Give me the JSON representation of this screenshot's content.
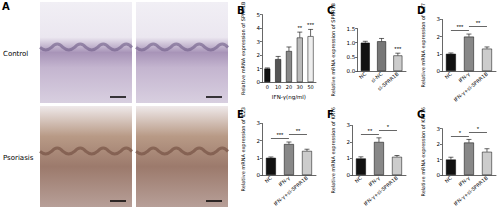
{
  "panel_a": {
    "title": "A",
    "rows": [
      {
        "label": "Control"
      },
      {
        "label": "Psoriasis"
      }
    ]
  },
  "chart_data": [
    {
      "type": "bar",
      "title": "B",
      "x_label": "IFN-γ(ng/ml)",
      "y_label": "Relative mRNA expression of SPRR1B",
      "categories": [
        "0",
        "10",
        "20",
        "30",
        "50"
      ],
      "values": [
        1.0,
        1.7,
        2.3,
        3.3,
        3.4
      ],
      "errors": [
        0.05,
        0.2,
        0.3,
        0.4,
        0.5
      ],
      "colors": [
        "#111111",
        "#555555",
        "#888888",
        "#bbbbbb",
        "#eeeeee"
      ],
      "ylim": [
        0,
        5
      ],
      "yticks": [
        0,
        1,
        2,
        3,
        4,
        5
      ],
      "annotations": [
        {
          "text": "**",
          "at": "30"
        },
        {
          "text": "***",
          "at": "50"
        }
      ]
    },
    {
      "type": "bar",
      "title": "C",
      "y_label": "Relative mRNA expression of SPRR1B",
      "categories": [
        "NC",
        "si-NC",
        "si-SPRR1B"
      ],
      "values": [
        1.0,
        1.05,
        0.55
      ],
      "errors": [
        0.05,
        0.1,
        0.08
      ],
      "colors": [
        "#111111",
        "#777777",
        "#cccccc"
      ],
      "ylim": [
        0,
        1.5
      ],
      "yticks": [
        {
          "value": 0,
          "label": "0.0"
        },
        {
          "value": 0.5,
          "label": "0.5"
        },
        {
          "value": 1,
          "label": "1.0"
        },
        {
          "value": 1.5,
          "label": "1.5"
        }
      ],
      "annotations": [
        {
          "text": "***",
          "at": "si-SPRR1B"
        }
      ]
    },
    {
      "type": "bar",
      "title": "D",
      "y_label": "Relative mRNA expression of IL17",
      "categories": [
        "NC",
        "IFN-γ",
        "IFN-γ+si-SPRR1B"
      ],
      "values": [
        1.0,
        2.0,
        1.3
      ],
      "errors": [
        0.05,
        0.15,
        0.1
      ],
      "colors": [
        "#111111",
        "#888888",
        "#cccccc"
      ],
      "ylim": [
        0,
        3
      ],
      "yticks": [
        0,
        1,
        2,
        3
      ],
      "annotations": [
        {
          "text": "***",
          "from": "NC",
          "to": "IFN-γ"
        },
        {
          "text": "**",
          "from": "IFN-γ",
          "to": "IFN-γ+si-SPRR1B"
        }
      ]
    },
    {
      "type": "bar",
      "title": "E",
      "y_label": "Relative mRNA expression of IL23",
      "categories": [
        "NC",
        "IFN-γ",
        "IFN-γ+si-SPRR1B"
      ],
      "values": [
        1.0,
        1.8,
        1.4
      ],
      "errors": [
        0.05,
        0.12,
        0.1
      ],
      "colors": [
        "#111111",
        "#888888",
        "#cccccc"
      ],
      "ylim": [
        0,
        3
      ],
      "yticks": [
        0,
        1,
        2,
        3
      ],
      "annotations": [
        {
          "text": "***",
          "from": "NC",
          "to": "IFN-γ"
        },
        {
          "text": "**",
          "from": "IFN-γ",
          "to": "IFN-γ+si-SPRR1B"
        }
      ]
    },
    {
      "type": "bar",
      "title": "F",
      "y_label": "Relative mRNA expression of KRT6",
      "categories": [
        "NC",
        "IFN-γ",
        "IFN-γ+si-SPRR1B"
      ],
      "values": [
        1.0,
        2.0,
        1.1
      ],
      "errors": [
        0.1,
        0.25,
        0.08
      ],
      "colors": [
        "#111111",
        "#888888",
        "#cccccc"
      ],
      "ylim": [
        0,
        3
      ],
      "yticks": [
        0,
        1,
        2,
        3
      ],
      "annotations": [
        {
          "text": "**",
          "from": "NC",
          "to": "IFN-γ"
        },
        {
          "text": "*",
          "from": "IFN-γ",
          "to": "IFN-γ+si-SPRR1B"
        }
      ]
    },
    {
      "type": "bar",
      "title": "G",
      "y_label": "Relative mRNA expression of KRT16",
      "categories": [
        "NC",
        "IFN-γ",
        "IFN-γ+si-SPRR1B"
      ],
      "values": [
        1.0,
        2.1,
        1.5
      ],
      "errors": [
        0.15,
        0.2,
        0.2
      ],
      "colors": [
        "#111111",
        "#888888",
        "#cccccc"
      ],
      "ylim": [
        0,
        3
      ],
      "yticks": [
        0,
        1,
        2,
        3
      ],
      "annotations": [
        {
          "text": "*",
          "from": "NC",
          "to": "IFN-γ"
        },
        {
          "text": "*",
          "from": "IFN-γ",
          "to": "IFN-γ+si-SPRR1B"
        }
      ]
    }
  ]
}
